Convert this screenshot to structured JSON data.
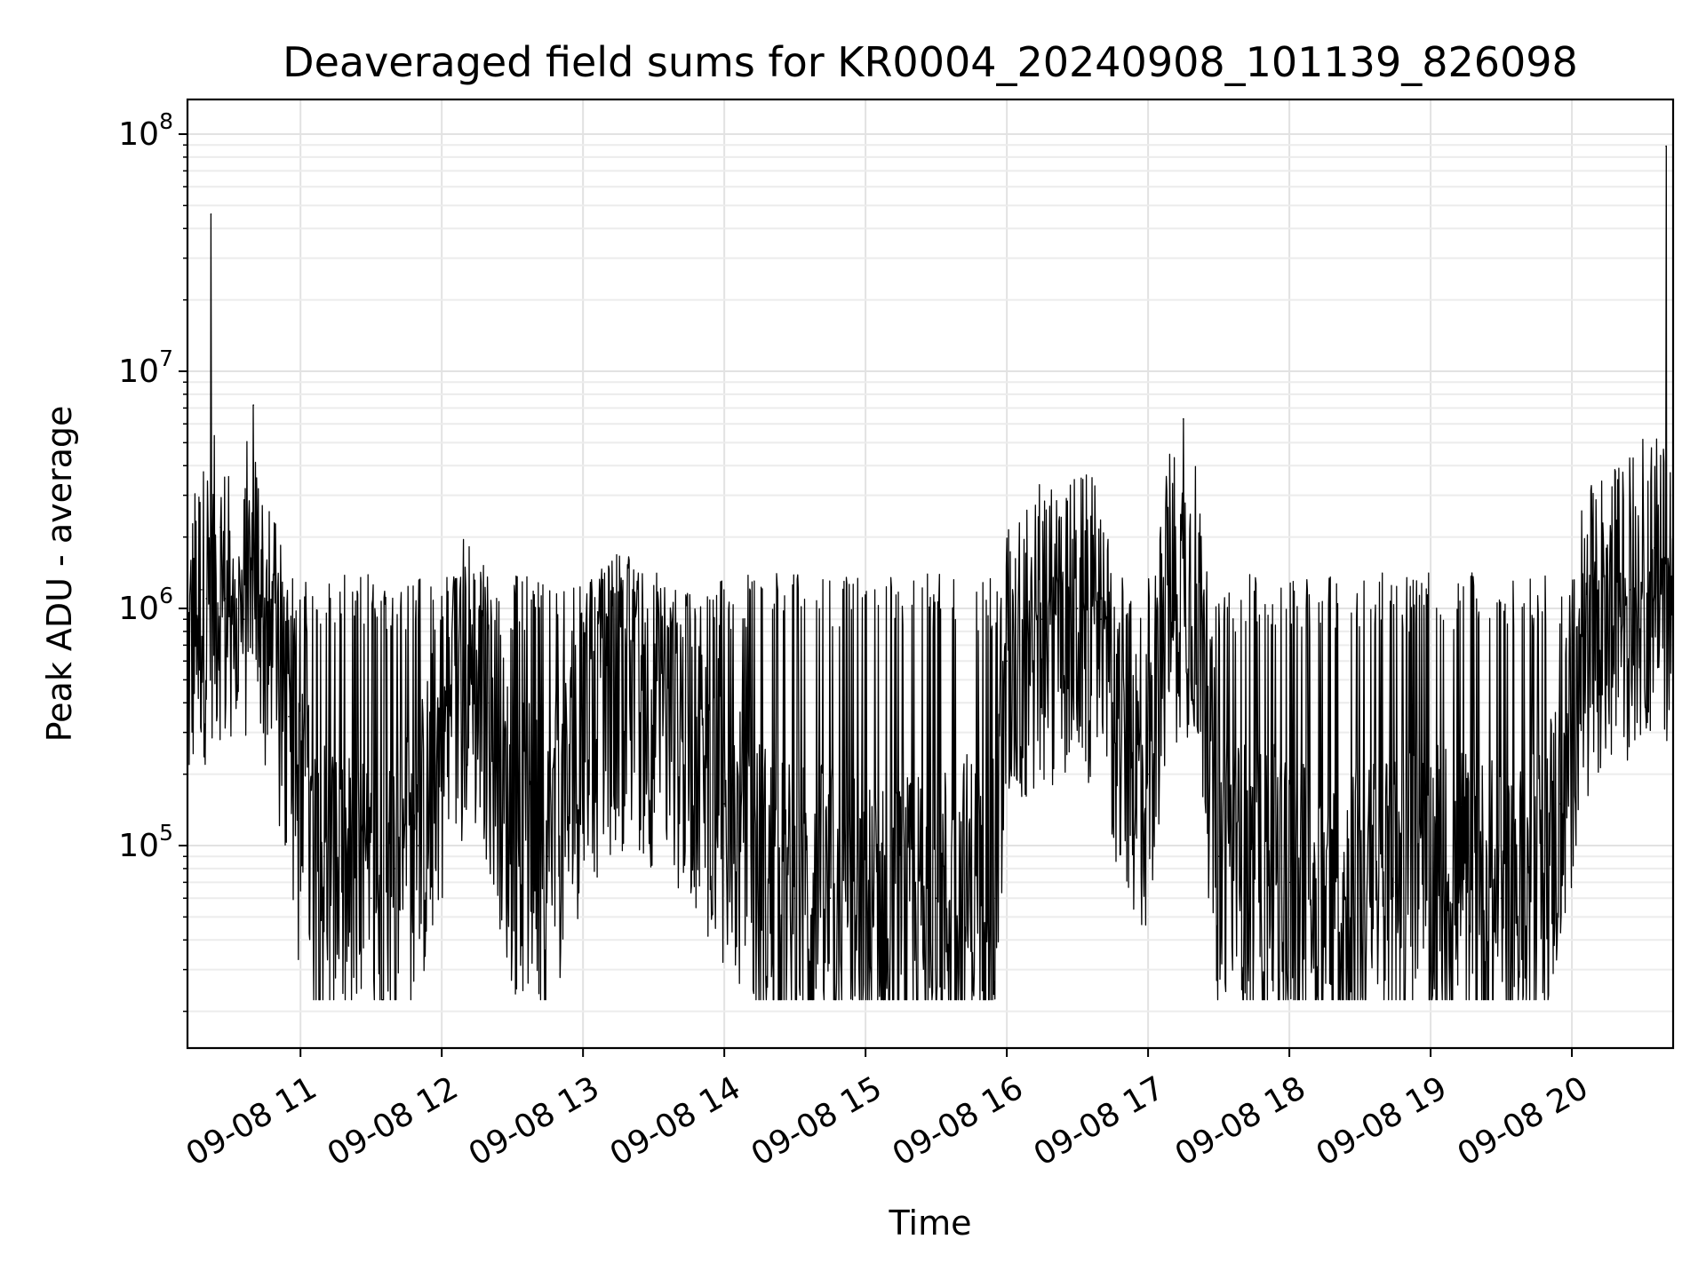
{
  "chart_data": {
    "type": "line",
    "title": "Deaveraged field sums for KR0004_20240908_101139_826098",
    "xlabel": "Time",
    "ylabel": "Peak ADU - average",
    "yscale": "log",
    "ylim": [
      14000,
      140000000
    ],
    "xlim": [
      "2024-09-08 10:12",
      "2024-09-08 20:43"
    ],
    "grid": true,
    "line_color": "#000000",
    "x_ticks": [
      {
        "label": "09-08 11",
        "value": "2024-09-08 11:00"
      },
      {
        "label": "09-08 12",
        "value": "2024-09-08 12:00"
      },
      {
        "label": "09-08 13",
        "value": "2024-09-08 13:00"
      },
      {
        "label": "09-08 14",
        "value": "2024-09-08 14:00"
      },
      {
        "label": "09-08 15",
        "value": "2024-09-08 15:00"
      },
      {
        "label": "09-08 16",
        "value": "2024-09-08 16:00"
      },
      {
        "label": "09-08 17",
        "value": "2024-09-08 17:00"
      },
      {
        "label": "09-08 18",
        "value": "2024-09-08 18:00"
      },
      {
        "label": "09-08 19",
        "value": "2024-09-08 19:00"
      },
      {
        "label": "09-08 20",
        "value": "2024-09-08 20:00"
      }
    ],
    "y_ticks": [
      {
        "base": "10",
        "exp": "5",
        "value": 100000
      },
      {
        "base": "10",
        "exp": "6",
        "value": 1000000
      },
      {
        "base": "10",
        "exp": "7",
        "value": 10000000
      },
      {
        "base": "10",
        "exp": "8",
        "value": 100000000
      }
    ],
    "series": [
      {
        "x": [
          "2024-09-08 10:12",
          "2024-09-08 10:15",
          "2024-09-08 10:18",
          "2024-09-08 10:20",
          "2024-09-08 10:22",
          "2024-09-08 10:24",
          "2024-09-08 10:26",
          "2024-09-08 10:28",
          "2024-09-08 10:30",
          "2024-09-08 10:33",
          "2024-09-08 10:36",
          "2024-09-08 10:40",
          "2024-09-08 10:45",
          "2024-09-08 10:50",
          "2024-09-08 10:55",
          "2024-09-08 11:00",
          "2024-09-08 11:10",
          "2024-09-08 11:20",
          "2024-09-08 11:30",
          "2024-09-08 11:40",
          "2024-09-08 11:50",
          "2024-09-08 12:00",
          "2024-09-08 12:10",
          "2024-09-08 12:20",
          "2024-09-08 12:30",
          "2024-09-08 12:45",
          "2024-09-08 13:00",
          "2024-09-08 13:15",
          "2024-09-08 13:30",
          "2024-09-08 13:45",
          "2024-09-08 14:00",
          "2024-09-08 14:15",
          "2024-09-08 14:30",
          "2024-09-08 14:45",
          "2024-09-08 15:00",
          "2024-09-08 15:15",
          "2024-09-08 15:30",
          "2024-09-08 15:45",
          "2024-09-08 15:55",
          "2024-09-08 16:00",
          "2024-09-08 16:15",
          "2024-09-08 16:30",
          "2024-09-08 16:40",
          "2024-09-08 16:45",
          "2024-09-08 16:50",
          "2024-09-08 17:00",
          "2024-09-08 17:15",
          "2024-09-08 17:30",
          "2024-09-08 17:45",
          "2024-09-08 18:00",
          "2024-09-08 18:15",
          "2024-09-08 18:30",
          "2024-09-08 18:45",
          "2024-09-08 19:00",
          "2024-09-08 19:15",
          "2024-09-08 19:30",
          "2024-09-08 19:45",
          "2024-09-08 19:55",
          "2024-09-08 20:05",
          "2024-09-08 20:15",
          "2024-09-08 20:25",
          "2024-09-08 20:35",
          "2024-09-08 20:38",
          "2024-09-08 20:40",
          "2024-09-08 20:43"
        ],
        "y": [
          600000,
          1000000,
          1200000,
          1100000,
          46000000,
          1200000,
          2200000,
          1100000,
          1000000,
          1000000,
          900000,
          7200000,
          800000,
          600000,
          350000,
          130000,
          90000,
          70000,
          60000,
          80000,
          100000,
          300000,
          600000,
          400000,
          120000,
          90000,
          300000,
          500000,
          400000,
          300000,
          150000,
          80000,
          60000,
          60000,
          50000,
          50000,
          60000,
          70000,
          60000,
          600000,
          900000,
          1000000,
          900000,
          400000,
          300000,
          200000,
          6300000,
          90000,
          70000,
          70000,
          60000,
          60000,
          70000,
          80000,
          70000,
          60000,
          70000,
          150000,
          800000,
          1000000,
          1200000,
          1800000,
          1600000,
          89000000,
          500000
        ]
      }
    ]
  }
}
